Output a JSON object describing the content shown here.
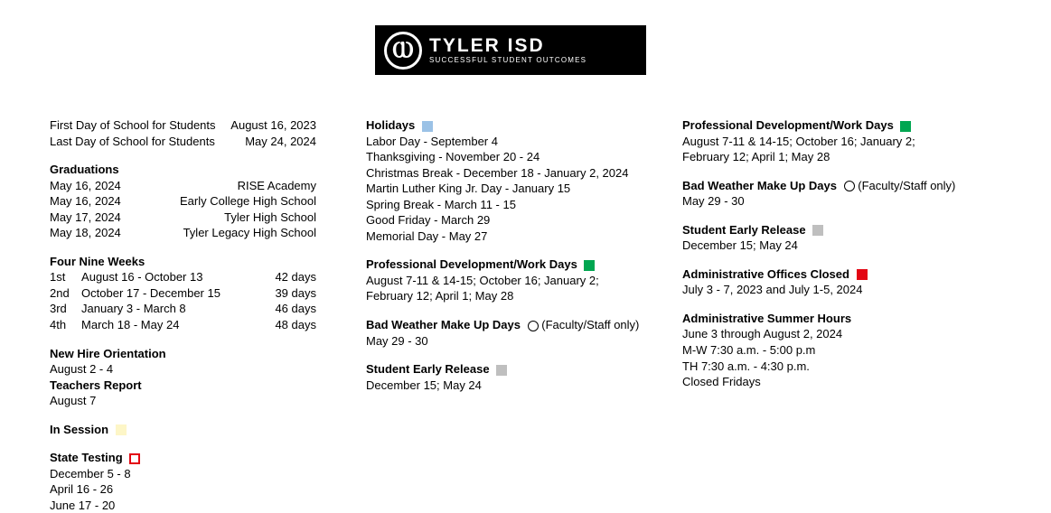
{
  "logo": {
    "glyph": "Ⲱ",
    "main": "TYLER ISD",
    "sub": "SUCCESSFUL STUDENT OUTCOMES"
  },
  "colors": {
    "in_session": "#fdf6c7",
    "state_testing_border": "#e30613",
    "holidays": "#9bc2e6",
    "pd_work": "#00a651",
    "early_release": "#bfbfbf",
    "offices_closed": "#e30613"
  },
  "col1": {
    "first_day_label": "First Day of School for Students",
    "first_day_date": "August 16, 2023",
    "last_day_label": "Last Day of School for Students",
    "last_day_date": "May 24, 2024",
    "graduations_header": "Graduations",
    "graduations": [
      {
        "date": "May  16, 2024",
        "school": "RISE Academy"
      },
      {
        "date": "May  16, 2024",
        "school": "Early College High School"
      },
      {
        "date": "May  17, 2024",
        "school": "Tyler High School"
      },
      {
        "date": "May  18, 2024",
        "school": "Tyler Legacy High School"
      }
    ],
    "fourNine_header": "Four Nine Weeks",
    "fourNine": [
      {
        "n": "1st",
        "range": "August 16 - October 13",
        "days": "42 days"
      },
      {
        "n": "2nd",
        "range": "October 17 - December 15",
        "days": "39 days"
      },
      {
        "n": "3rd",
        "range": "January 3 - March 8",
        "days": "46 days"
      },
      {
        "n": "4th",
        "range": "March 18 - May 24",
        "days": "48 days"
      }
    ],
    "new_hire_header": "New Hire Orientation",
    "new_hire_dates": "August 2 - 4",
    "teachers_report_header": "Teachers Report",
    "teachers_report_date": "August 7",
    "in_session_header": "In Session",
    "state_testing_header": "State Testing",
    "state_testing_1": "December 5 - 8",
    "state_testing_2": "April 16 - 26",
    "state_testing_3": "June 17 - 20"
  },
  "col2": {
    "holidays_header": "Holidays",
    "holidays_1": "Labor Day - September 4",
    "holidays_2": "Thanksgiving - November 20 - 24",
    "holidays_3": "Christmas Break - December 18 - January 2, 2024",
    "holidays_4": "Martin Luther King Jr. Day - January 15",
    "holidays_5": "Spring Break - March 11 - 15",
    "holidays_6": "Good Friday -  March 29",
    "holidays_7": "Memorial Day - May 27",
    "pd_header": "Professional Development/Work Days",
    "pd_1": "August 7-11 & 14-15; October 16; January 2;",
    "pd_2": "February 12; April 1; May 28",
    "bw_header": "Bad Weather Make Up Days",
    "bw_note": "(Faculty/Staff only)",
    "bw_dates": "May 29 - 30",
    "early_release_header": "Student Early Release",
    "early_release_dates": "December 15; May 24"
  },
  "col3": {
    "pd_header": "Professional Development/Work Days",
    "pd_1": "August 7-11 & 14-15; October 16; January 2;",
    "pd_2": "February 12; April 1; May 28",
    "bw_header": "Bad Weather Make Up Days",
    "bw_note": "(Faculty/Staff only)",
    "bw_dates": "May 29 - 30",
    "early_release_header": "Student Early Release",
    "early_release_dates": "December 15; May 24",
    "offices_closed_header": "Administrative Offices Closed",
    "offices_closed_dates": "July 3 - 7, 2023 and July 1-5, 2024",
    "summer_header": "Administrative Summer Hours",
    "summer_1": "June 3 through August 2, 2024",
    "summer_2": "M-W 7:30 a.m. - 5:00 p.m",
    "summer_3": "TH 7:30 a.m. - 4:30 p.m.",
    "summer_4": "Closed Fridays"
  }
}
